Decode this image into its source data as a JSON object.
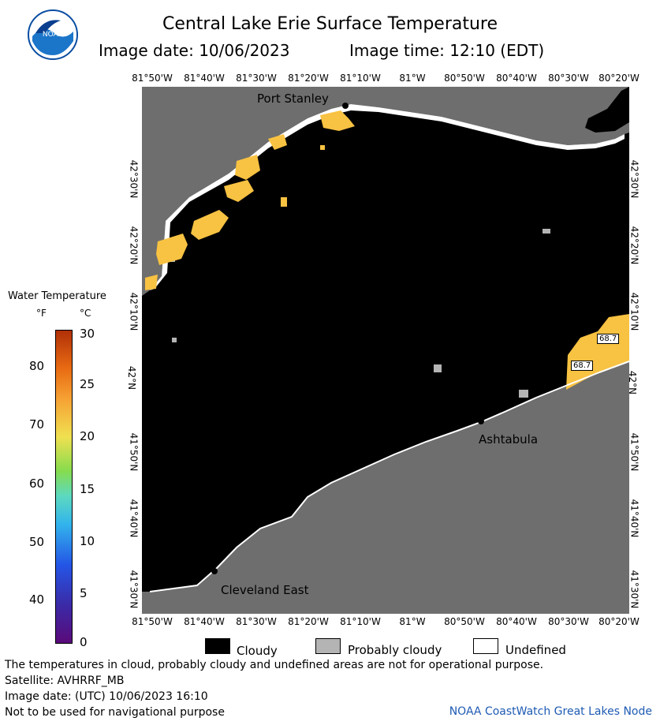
{
  "header": {
    "title": "Central Lake Erie Surface Temperature",
    "image_date_label": "Image date: 10/06/2023",
    "image_time_label": "Image time: 12:10 (EDT)"
  },
  "axes": {
    "lon_labels": [
      "81°50'W",
      "81°40'W",
      "81°30'W",
      "81°20'W",
      "81°10'W",
      "81°W",
      "80°50'W",
      "80°40'W",
      "80°30'W",
      "80°20'W"
    ],
    "lat_labels": [
      "42°30'N",
      "42°20'N",
      "42°10'N",
      "42°N",
      "41°50'N",
      "41°40'N",
      "41°30'N"
    ]
  },
  "places": {
    "port_stanley": "Port Stanley",
    "ashtabula": "Ashtabula",
    "cleveland_east": "Cleveland East"
  },
  "temperature_tags": [
    "68.7",
    "68.7"
  ],
  "legend": {
    "title": "Water Temperature",
    "unit_f": "°F",
    "unit_c": "°C",
    "f_ticks": [
      "80",
      "70",
      "60",
      "50",
      "40"
    ],
    "c_ticks": [
      "30",
      "25",
      "20",
      "15",
      "10",
      "5",
      "0"
    ]
  },
  "key": {
    "cloudy": "Cloudy",
    "probably_cloudy": "Probably cloudy",
    "undefined": "Undefined"
  },
  "footer": {
    "note": "The temperatures in cloud, probably cloudy and undefined areas are not for operational purpose.",
    "satellite": "Satellite: AVHRRF_MB",
    "utc_date": "Image date: (UTC) 10/06/2023  16:10",
    "nav_warning": "Not to be used for navigational purpose",
    "credit": "NOAA CoastWatch Great Lakes Node"
  },
  "colors": {
    "land": "#6e6e6e",
    "cloud": "#000000",
    "probably_cloudy": "#b4b4b4",
    "undefined": "#ffffff",
    "warm_water": "#f8c242"
  },
  "icons": {
    "logo": "noaa-logo"
  }
}
